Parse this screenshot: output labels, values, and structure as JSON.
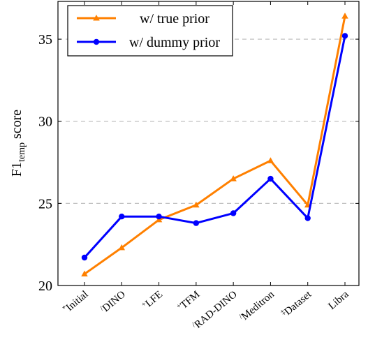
{
  "chart_data": {
    "type": "line",
    "title": "",
    "ylabel_main": "F1",
    "ylabel_sub": "temp",
    "ylabel_rest": " score",
    "xlabel": "",
    "categories": [
      {
        "prefix": "*",
        "label": "Initial"
      },
      {
        "prefix": "/",
        "label": "DINO"
      },
      {
        "prefix": "+",
        "label": "LFE"
      },
      {
        "prefix": "+",
        "label": "TFM"
      },
      {
        "prefix": "/",
        "label": "RAD-DINO"
      },
      {
        "prefix": "/",
        "label": "Meditron"
      },
      {
        "prefix": "‡",
        "label": "Dataset"
      },
      {
        "prefix": "",
        "label": "Libra"
      }
    ],
    "ylim": [
      20,
      37.3
    ],
    "yticks": [
      20,
      25,
      30,
      35
    ],
    "grid": "horizontal dashed",
    "legend_position": "top-left",
    "series": [
      {
        "name": "w/ true prior",
        "color": "#ff8000",
        "marker": "triangle",
        "values": [
          20.7,
          22.3,
          24.0,
          24.9,
          26.5,
          27.6,
          24.9,
          36.4
        ]
      },
      {
        "name": "w/ dummy prior",
        "color": "#0000ff",
        "marker": "circle",
        "values": [
          21.7,
          24.2,
          24.2,
          23.8,
          24.4,
          26.5,
          24.1,
          35.2
        ]
      }
    ]
  }
}
